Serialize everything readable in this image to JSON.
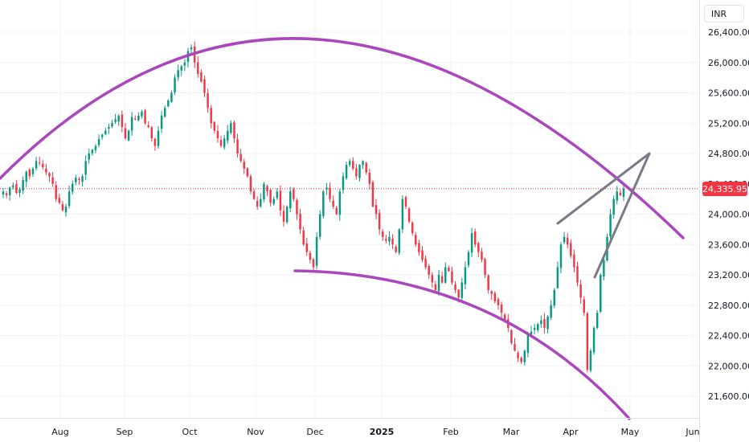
{
  "chart_data": {
    "type": "candlestick",
    "currency": "INR",
    "last_price": "24,335.95",
    "y_ticks": [
      "26,400.00",
      "26,000.00",
      "25,600.00",
      "25,200.00",
      "24,800.00",
      "24,400.00",
      "24,000.00",
      "23,600.00",
      "23,200.00",
      "22,800.00",
      "22,400.00",
      "22,000.00",
      "21,600.00"
    ],
    "y_tick_values": [
      26400,
      26000,
      25600,
      25200,
      24800,
      24400,
      24000,
      23600,
      23200,
      22800,
      22400,
      22000,
      21600
    ],
    "ylim": [
      21450,
      26750
    ],
    "x_ticks": [
      {
        "label": "Aug",
        "bold": false
      },
      {
        "label": "Sep",
        "bold": false
      },
      {
        "label": "Oct",
        "bold": false
      },
      {
        "label": "Nov",
        "bold": false
      },
      {
        "label": "Dec",
        "bold": false
      },
      {
        "label": "2025",
        "bold": true
      },
      {
        "label": "Feb",
        "bold": false
      },
      {
        "label": "Mar",
        "bold": false
      },
      {
        "label": "Apr",
        "bold": false
      },
      {
        "label": "May",
        "bold": false
      },
      {
        "label": "Jun",
        "bold": false
      }
    ],
    "closes": [
      24300,
      24250,
      24350,
      24380,
      24280,
      24330,
      24450,
      24560,
      24500,
      24600,
      24700,
      24680,
      24620,
      24550,
      24500,
      24400,
      24200,
      24150,
      24050,
      24100,
      24300,
      24400,
      24480,
      24450,
      24500,
      24700,
      24800,
      24850,
      24900,
      24990,
      25050,
      25100,
      25150,
      25200,
      25250,
      25300,
      25150,
      25000,
      25100,
      25280,
      25250,
      25300,
      25350,
      25200,
      25150,
      25000,
      24900,
      25100,
      25300,
      25400,
      25500,
      25600,
      25800,
      25900,
      25950,
      26000,
      26150,
      26200,
      26000,
      25850,
      25750,
      25600,
      25400,
      25200,
      25100,
      25000,
      24900,
      25000,
      25100,
      25200,
      25000,
      24800,
      24700,
      24600,
      24500,
      24300,
      24200,
      24100,
      24200,
      24400,
      24300,
      24150,
      24200,
      24300,
      24050,
      23900,
      24100,
      24300,
      24200,
      24000,
      23800,
      23600,
      23500,
      23400,
      23300,
      23700,
      24000,
      24300,
      24350,
      24200,
      24100,
      24000,
      24300,
      24500,
      24650,
      24700,
      24600,
      24500,
      24650,
      24700,
      24550,
      24400,
      24100,
      24000,
      23800,
      23700,
      23650,
      23700,
      23600,
      23500,
      23800,
      24200,
      24100,
      23900,
      23750,
      23600,
      23500,
      23400,
      23300,
      23200,
      23100,
      23000,
      23200,
      23100,
      23300,
      23250,
      23100,
      23000,
      22900,
      23100,
      23300,
      23500,
      23750,
      23600,
      23500,
      23400,
      23200,
      23000,
      22950,
      22850,
      22800,
      22700,
      22600,
      22500,
      22300,
      22200,
      22100,
      22050,
      22200,
      22400,
      22450,
      22500,
      22550,
      22600,
      22500,
      22650,
      22800,
      23000,
      23300,
      23600,
      23700,
      23600,
      23450,
      23300,
      23100,
      22900,
      22700,
      21950,
      22200,
      22500,
      22700,
      23200,
      23400,
      23700,
      24000,
      24200,
      24300,
      24250,
      24336
    ],
    "trendlines": [
      {
        "name": "upper-arc",
        "color": "#ab47bc"
      },
      {
        "name": "lower-arc",
        "color": "#ab47bc"
      },
      {
        "name": "wedge",
        "color": "#787b86"
      }
    ]
  }
}
